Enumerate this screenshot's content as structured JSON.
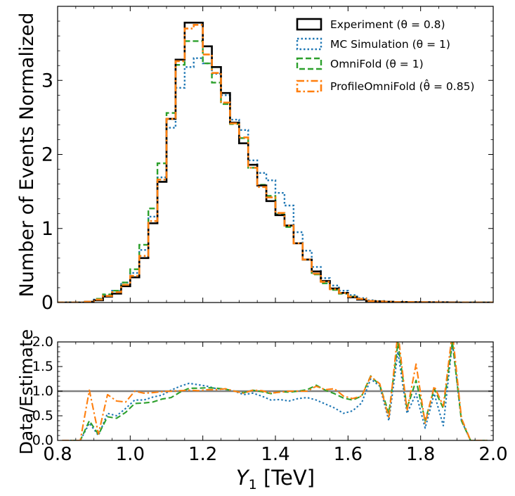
{
  "chart_data": [
    {
      "type": "step",
      "ylabel": "Number of Events Normalized",
      "xlim": [
        0.8,
        2.0
      ],
      "ylim": [
        0,
        4.0
      ],
      "yticks": [
        0,
        1,
        2,
        3
      ],
      "bin_edges": [
        0.8,
        0.825,
        0.85,
        0.875,
        0.9,
        0.925,
        0.95,
        0.975,
        1.0,
        1.025,
        1.05,
        1.075,
        1.1,
        1.125,
        1.15,
        1.175,
        1.2,
        1.225,
        1.25,
        1.275,
        1.3,
        1.325,
        1.35,
        1.375,
        1.4,
        1.425,
        1.45,
        1.475,
        1.5,
        1.525,
        1.55,
        1.575,
        1.6,
        1.625,
        1.65,
        1.675,
        1.7,
        1.725,
        1.75,
        1.775,
        1.8,
        1.825,
        1.85,
        1.875,
        1.9,
        1.925,
        1.95,
        1.975,
        2.0
      ],
      "legend_position": "top-right",
      "series": [
        {
          "name": "Experiment ($\\theta=0.8$)",
          "label": "Experiment (θ = 0.8)",
          "color": "#000000",
          "style": "solid",
          "values": [
            0,
            0,
            0,
            0.01,
            0.03,
            0.08,
            0.12,
            0.22,
            0.34,
            0.6,
            1.07,
            1.63,
            2.48,
            3.28,
            3.78,
            3.78,
            3.46,
            3.18,
            2.83,
            2.43,
            2.15,
            1.86,
            1.58,
            1.37,
            1.18,
            1.04,
            0.8,
            0.58,
            0.42,
            0.29,
            0.19,
            0.13,
            0.07,
            0.04,
            0.02,
            0.015,
            0.01,
            0.005,
            0.005,
            0.004,
            0.004,
            0.003,
            0.003,
            0.002,
            0,
            0,
            0,
            0
          ]
        },
        {
          "name": "MC Simulation ($\\theta=1$)",
          "label": "MC Simulation (θ = 1)",
          "color": "#1f77b4",
          "style": "dotted",
          "values": [
            0,
            0,
            0,
            0.01,
            0.04,
            0.1,
            0.16,
            0.27,
            0.4,
            0.71,
            1.16,
            1.69,
            2.36,
            2.9,
            3.18,
            3.3,
            3.23,
            3.09,
            2.8,
            2.47,
            2.33,
            1.92,
            1.75,
            1.65,
            1.48,
            1.31,
            0.95,
            0.7,
            0.48,
            0.33,
            0.23,
            0.16,
            0.1,
            0.06,
            0.03,
            0.02,
            0.01,
            0.005,
            0.005,
            0.004,
            0.003,
            0.003,
            0.002,
            0,
            0,
            0,
            0,
            0
          ]
        },
        {
          "name": "OmniFold ($\\theta=1$)",
          "label": "OmniFold (θ = 1)",
          "color": "#2ca02c",
          "style": "dashed",
          "values": [
            0,
            0,
            0,
            0.01,
            0.05,
            0.11,
            0.16,
            0.27,
            0.45,
            0.78,
            1.27,
            1.88,
            2.56,
            3.21,
            3.53,
            3.53,
            3.23,
            2.97,
            2.68,
            2.41,
            2.22,
            1.82,
            1.59,
            1.44,
            1.19,
            1.02,
            0.8,
            0.58,
            0.38,
            0.26,
            0.17,
            0.12,
            0.08,
            0.05,
            0.02,
            0.015,
            0.01,
            0.005,
            0.005,
            0.004,
            0.003,
            0.003,
            0.002,
            0,
            0,
            0,
            0,
            0
          ]
        },
        {
          "name": "ProfileOmniFold ($\\hat{\\theta}=0.85$)",
          "label": "ProfileOmniFold (θ̂ = 0.85)",
          "color": "#ff7f0e",
          "style": "dashdot",
          "values": [
            0,
            0,
            0,
            0.01,
            0.04,
            0.09,
            0.14,
            0.24,
            0.36,
            0.63,
            1.1,
            1.66,
            2.48,
            3.26,
            3.7,
            3.75,
            3.35,
            3.1,
            2.7,
            2.42,
            2.23,
            1.82,
            1.56,
            1.42,
            1.21,
            1.04,
            0.8,
            0.58,
            0.39,
            0.28,
            0.18,
            0.13,
            0.08,
            0.05,
            0.02,
            0.015,
            0.01,
            0.005,
            0.005,
            0.004,
            0.003,
            0.003,
            0.002,
            0,
            0,
            0,
            0,
            0
          ]
        }
      ]
    },
    {
      "type": "line",
      "xlabel": "$Y_1$ [TeV]",
      "xlabel_main": "Y",
      "xlabel_sub": "1",
      "xlabel_unit": " [TeV]",
      "ylabel": "Data/Estimate",
      "xlim": [
        0.8,
        2.0
      ],
      "ylim": [
        0,
        2.0
      ],
      "xticks": [
        "0.8",
        "1.0",
        "1.2",
        "1.4",
        "1.6",
        "1.8",
        "2.0"
      ],
      "yticks": [
        "0.0",
        "0.5",
        "1.0",
        "1.5",
        "2.0"
      ],
      "reference_line": 1.0,
      "reference_color": "#808080",
      "x": [
        0.8125,
        0.8375,
        0.8625,
        0.8875,
        0.9125,
        0.9375,
        0.9625,
        0.9875,
        1.0125,
        1.0375,
        1.0625,
        1.0875,
        1.1125,
        1.1375,
        1.1625,
        1.1875,
        1.2125,
        1.2375,
        1.2625,
        1.2875,
        1.3125,
        1.3375,
        1.3625,
        1.3875,
        1.4125,
        1.4375,
        1.4625,
        1.4875,
        1.5125,
        1.5375,
        1.5625,
        1.5875,
        1.6125,
        1.6375,
        1.6625,
        1.6875,
        1.7125,
        1.7375,
        1.7625,
        1.7875,
        1.8125,
        1.8375,
        1.8625,
        1.8875,
        1.9125,
        1.9375,
        1.9625,
        1.9875
      ],
      "series": [
        {
          "name": "MC Simulation",
          "color": "#1f77b4",
          "style": "dotted",
          "values": [
            0,
            0,
            0,
            0.35,
            0.1,
            0.55,
            0.5,
            0.65,
            0.82,
            0.82,
            0.88,
            0.92,
            1.02,
            1.1,
            1.16,
            1.13,
            1.1,
            1.05,
            1.04,
            1.0,
            0.93,
            0.96,
            0.9,
            0.82,
            0.83,
            0.8,
            0.85,
            0.87,
            0.82,
            0.74,
            0.66,
            0.55,
            0.6,
            0.76,
            1.25,
            1.1,
            0.4,
            1.8,
            0.55,
            0.95,
            0.25,
            0.95,
            0.3,
            2.0,
            0.4,
            0,
            0,
            0
          ]
        },
        {
          "name": "OmniFold",
          "color": "#2ca02c",
          "style": "dashed",
          "values": [
            0,
            0,
            0,
            0.4,
            0.12,
            0.48,
            0.45,
            0.57,
            0.75,
            0.76,
            0.78,
            0.84,
            0.87,
            0.98,
            1.06,
            1.06,
            1.07,
            1.06,
            1.04,
            1.0,
            0.97,
            1.02,
            0.99,
            0.95,
            0.99,
            0.98,
            1.0,
            1.03,
            1.12,
            1.02,
            0.95,
            0.86,
            0.82,
            0.9,
            1.31,
            1.12,
            0.55,
            1.98,
            0.65,
            1.22,
            0.4,
            1.05,
            0.65,
            2.0,
            0.4,
            0,
            0,
            0
          ]
        },
        {
          "name": "ProfileOmniFold",
          "color": "#ff7f0e",
          "style": "dashdot",
          "values": [
            0,
            0,
            0,
            1.02,
            0.13,
            0.93,
            0.8,
            0.78,
            1.0,
            0.96,
            0.97,
            0.99,
            1.0,
            1.01,
            1.02,
            1.01,
            1.03,
            1.03,
            1.05,
            1.0,
            0.96,
            1.02,
            1.01,
            0.96,
            0.98,
            1.0,
            1.0,
            1.0,
            1.1,
            1.03,
            1.05,
            0.9,
            0.85,
            0.9,
            1.3,
            1.15,
            0.45,
            2.2,
            0.6,
            1.55,
            0.35,
            1.1,
            0.7,
            2.2,
            0.45,
            0,
            0,
            0
          ]
        }
      ]
    }
  ]
}
